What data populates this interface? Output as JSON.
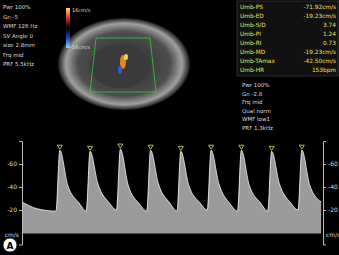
{
  "chart_data": {
    "type": "area",
    "y_label": "cm/s",
    "x": [
      0,
      0.2,
      0.44,
      0.49,
      0.59,
      0.74,
      0.832,
      0.882,
      0.982,
      1.132,
      1.224,
      1.274,
      1.374,
      1.524,
      1.616,
      1.666,
      1.766,
      1.916,
      2.008,
      2.058,
      2.158,
      2.308,
      2.4,
      2.45,
      2.55,
      2.7,
      2.792,
      2.842,
      2.942,
      3.092,
      3.184,
      3.234,
      3.334,
      3.484,
      3.576,
      3.626,
      3.726,
      3.876
    ],
    "values": [
      -27,
      -21,
      -19,
      -72,
      -42,
      -26,
      -19,
      -71,
      -43,
      -26,
      -20,
      -73,
      -42,
      -25,
      -19,
      -72,
      -43,
      -26,
      -19,
      -71,
      -42,
      -26,
      -20,
      -72,
      -43,
      -25,
      -19,
      -72,
      -42,
      -26,
      -19,
      -71,
      -43,
      -26,
      -20,
      -72,
      -42,
      -27
    ],
    "xlim": [
      0,
      3.9
    ],
    "ylim": [
      10,
      -80
    ],
    "yticks": [
      -60,
      -40,
      -20
    ],
    "tick_labels": "y",
    "color": "#cfcfcf",
    "marker": "triangle"
  },
  "overlay": {
    "image_params": [
      "Pwr 100%",
      "Gn -5",
      "WMF 126 Hz",
      "SV Angle 0",
      "size 2.8mm",
      "Frq mid",
      "PRF 5.5kHz"
    ],
    "color_scale": {
      "top": "16cm/s",
      "bottom": "-16cm/s"
    },
    "measurements": [
      [
        "Umb-PS",
        "-71.92cm/s"
      ],
      [
        "Umb-ED",
        "-19.23cm/s"
      ],
      [
        "Umb-S/D",
        "3.74"
      ],
      [
        "Umb-PI",
        "1.24"
      ],
      [
        "Umb-RI",
        "0.73"
      ],
      [
        "Umb-MD",
        "-19.23cm/s"
      ],
      [
        "Umb-TAmax",
        "-42.50cm/s"
      ],
      [
        "Umb-HR",
        "153bpm"
      ]
    ],
    "doppler_params": [
      "Pwr 100%",
      "Gn -2.8",
      "Frq mid",
      "Qual norm",
      "WMF low1",
      "PRF 1.3kHz"
    ],
    "panel_label": "A"
  }
}
